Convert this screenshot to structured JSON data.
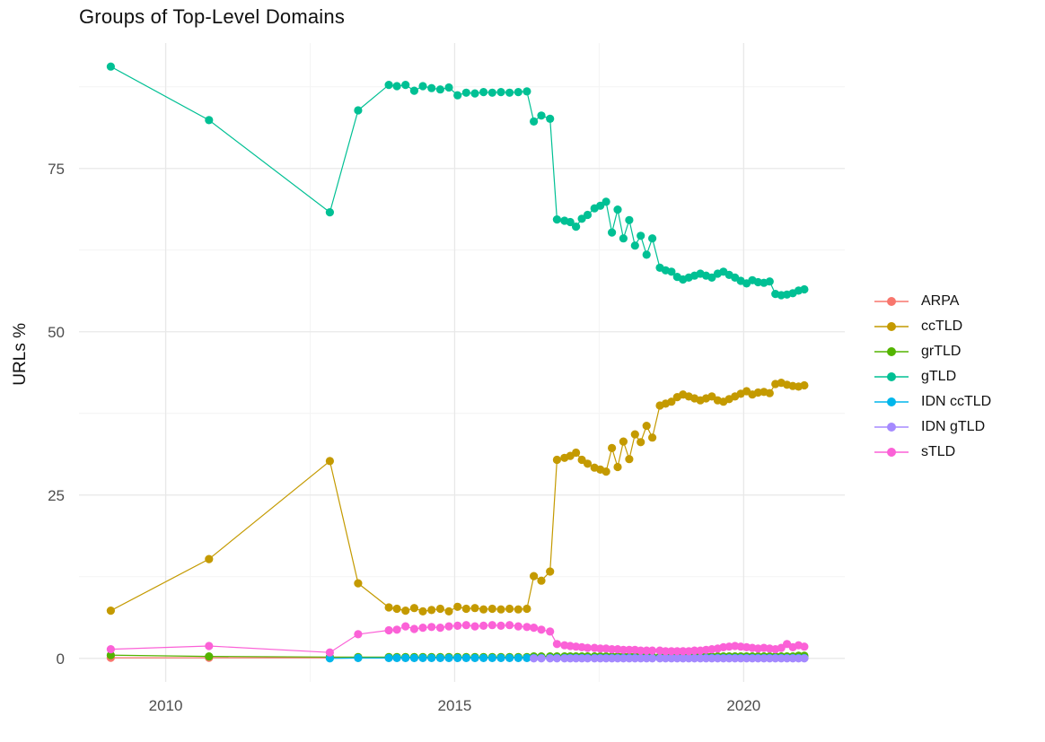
{
  "page": {
    "background": "#ffffff"
  },
  "styles": {
    "grid_major": "#e8e8e8",
    "grid_minor": "#f4f4f4",
    "tick_text": "#4d4d4d",
    "title_color": "#111111"
  },
  "chart_data": {
    "type": "line",
    "title": "Groups of Top-Level Domains",
    "xlabel": "",
    "ylabel": "URLs %",
    "xlim": [
      2008.5,
      2021.75
    ],
    "ylim": [
      -3.6,
      94.2
    ],
    "grid": true,
    "legend_position": "right",
    "x_ticks": [
      {
        "v": 2010,
        "label": "2010"
      },
      {
        "v": 2015,
        "label": "2015"
      },
      {
        "v": 2020,
        "label": "2020"
      }
    ],
    "x_minor": [
      2012.5,
      2017.5
    ],
    "y_ticks": [
      {
        "v": 0,
        "label": "0"
      },
      {
        "v": 25,
        "label": "25"
      },
      {
        "v": 50,
        "label": "50"
      },
      {
        "v": 75,
        "label": "75"
      }
    ],
    "y_minor": [
      12.5,
      37.5,
      62.5,
      87.5
    ],
    "series": [
      {
        "name": "ARPA",
        "color": "#F8766D",
        "x": [
          2009.05,
          2010.75,
          2012.84,
          2013.33,
          2013.86,
          2014.0,
          2014.15,
          2014.3,
          2014.45,
          2014.6,
          2014.75,
          2014.9,
          2015.05,
          2015.2,
          2015.35,
          2015.5,
          2015.65,
          2015.8,
          2015.95,
          2016.1,
          2016.25,
          2016.37,
          2016.5,
          2016.65,
          2016.77,
          2016.9,
          2017.0,
          2017.1,
          2017.2,
          2017.3,
          2017.42,
          2017.52,
          2017.62,
          2017.72,
          2017.82,
          2017.92,
          2018.02,
          2018.12,
          2018.22,
          2018.32,
          2018.42,
          2018.55,
          2018.65,
          2018.75,
          2018.85,
          2018.95,
          2019.05,
          2019.15,
          2019.25,
          2019.35,
          2019.45,
          2019.55,
          2019.65,
          2019.75,
          2019.85,
          2019.95,
          2020.05,
          2020.15,
          2020.25,
          2020.35,
          2020.45,
          2020.55,
          2020.65,
          2020.75,
          2020.85,
          2020.95,
          2021.05
        ],
        "y": [
          0.1,
          0.1,
          0.1,
          0.1,
          0.1,
          0.1,
          0.1,
          0.1,
          0.1,
          0.1,
          0.1,
          0.1,
          0.1,
          0.1,
          0.1,
          0.1,
          0.1,
          0.1,
          0.1,
          0.1,
          0.1,
          0.1,
          0.1,
          0.1,
          0.1,
          0.1,
          0.1,
          0.1,
          0.1,
          0.1,
          0.1,
          0.1,
          0.1,
          0.1,
          0.1,
          0.1,
          0.1,
          0.1,
          0.1,
          0.1,
          0.1,
          0.1,
          0.1,
          0.1,
          0.1,
          0.1,
          0.1,
          0.1,
          0.1,
          0.1,
          0.1,
          0.1,
          0.1,
          0.1,
          0.1,
          0.1,
          0.1,
          0.1,
          0.1,
          0.1,
          0.1,
          0.1,
          0.1,
          0.1,
          0.1,
          0.1,
          0.1
        ]
      },
      {
        "name": "ccTLD",
        "color": "#C49A00",
        "x": [
          2009.05,
          2010.75,
          2012.84,
          2013.33,
          2013.86,
          2014.0,
          2014.15,
          2014.3,
          2014.45,
          2014.6,
          2014.75,
          2014.9,
          2015.05,
          2015.2,
          2015.35,
          2015.5,
          2015.65,
          2015.8,
          2015.95,
          2016.1,
          2016.25,
          2016.37,
          2016.5,
          2016.65,
          2016.77,
          2016.9,
          2017.0,
          2017.1,
          2017.2,
          2017.3,
          2017.42,
          2017.52,
          2017.62,
          2017.72,
          2017.82,
          2017.92,
          2018.02,
          2018.12,
          2018.22,
          2018.32,
          2018.42,
          2018.55,
          2018.65,
          2018.75,
          2018.85,
          2018.95,
          2019.05,
          2019.15,
          2019.25,
          2019.35,
          2019.45,
          2019.55,
          2019.65,
          2019.75,
          2019.85,
          2019.95,
          2020.05,
          2020.15,
          2020.25,
          2020.35,
          2020.45,
          2020.55,
          2020.65,
          2020.75,
          2020.85,
          2020.95,
          2021.05
        ],
        "y": [
          7.3,
          15.2,
          30.2,
          11.5,
          7.8,
          7.6,
          7.3,
          7.7,
          7.2,
          7.4,
          7.6,
          7.2,
          7.9,
          7.6,
          7.7,
          7.5,
          7.6,
          7.5,
          7.6,
          7.5,
          7.6,
          12.6,
          11.9,
          13.3,
          30.4,
          30.7,
          31.0,
          31.5,
          30.4,
          29.8,
          29.2,
          28.9,
          28.6,
          32.2,
          29.3,
          33.2,
          30.5,
          34.3,
          33.1,
          35.6,
          33.8,
          38.7,
          39.0,
          39.3,
          40.0,
          40.4,
          40.1,
          39.8,
          39.5,
          39.8,
          40.1,
          39.5,
          39.3,
          39.7,
          40.1,
          40.5,
          40.9,
          40.4,
          40.7,
          40.8,
          40.6,
          42.0,
          42.2,
          41.9,
          41.7,
          41.6,
          41.8
        ]
      },
      {
        "name": "grTLD",
        "color": "#53B400",
        "x": [
          2009.05,
          2010.75,
          2012.84,
          2013.33,
          2013.86,
          2014.0,
          2014.15,
          2014.3,
          2014.45,
          2014.6,
          2014.75,
          2014.9,
          2015.05,
          2015.2,
          2015.35,
          2015.5,
          2015.65,
          2015.8,
          2015.95,
          2016.1,
          2016.25,
          2016.37,
          2016.5,
          2016.65,
          2016.77,
          2016.9,
          2017.0,
          2017.1,
          2017.2,
          2017.3,
          2017.42,
          2017.52,
          2017.62,
          2017.72,
          2017.82,
          2017.92,
          2018.02,
          2018.12,
          2018.22,
          2018.32,
          2018.42,
          2018.55,
          2018.65,
          2018.75,
          2018.85,
          2018.95,
          2019.05,
          2019.15,
          2019.25,
          2019.35,
          2019.45,
          2019.55,
          2019.65,
          2019.75,
          2019.85,
          2019.95,
          2020.05,
          2020.15,
          2020.25,
          2020.35,
          2020.45,
          2020.55,
          2020.65,
          2020.75,
          2020.85,
          2020.95,
          2021.05
        ],
        "y": [
          0.5,
          0.3,
          0.2,
          0.2,
          0.2,
          0.2,
          0.2,
          0.2,
          0.2,
          0.2,
          0.2,
          0.2,
          0.2,
          0.2,
          0.2,
          0.2,
          0.2,
          0.2,
          0.2,
          0.2,
          0.2,
          0.3,
          0.3,
          0.3,
          0.3,
          0.3,
          0.3,
          0.3,
          0.3,
          0.3,
          0.3,
          0.3,
          0.3,
          0.3,
          0.3,
          0.3,
          0.3,
          0.3,
          0.3,
          0.3,
          0.3,
          0.3,
          0.3,
          0.3,
          0.3,
          0.3,
          0.3,
          0.3,
          0.3,
          0.3,
          0.3,
          0.3,
          0.3,
          0.3,
          0.3,
          0.3,
          0.3,
          0.3,
          0.3,
          0.3,
          0.3,
          0.3,
          0.3,
          0.3,
          0.3,
          0.4,
          0.4
        ]
      },
      {
        "name": "gTLD",
        "color": "#00C094",
        "x": [
          2009.05,
          2010.75,
          2012.84,
          2013.33,
          2013.86,
          2014.0,
          2014.15,
          2014.3,
          2014.45,
          2014.6,
          2014.75,
          2014.9,
          2015.05,
          2015.2,
          2015.35,
          2015.5,
          2015.65,
          2015.8,
          2015.95,
          2016.1,
          2016.25,
          2016.37,
          2016.5,
          2016.65,
          2016.77,
          2016.9,
          2017.0,
          2017.1,
          2017.2,
          2017.3,
          2017.42,
          2017.52,
          2017.62,
          2017.72,
          2017.82,
          2017.92,
          2018.02,
          2018.12,
          2018.22,
          2018.32,
          2018.42,
          2018.55,
          2018.65,
          2018.75,
          2018.85,
          2018.95,
          2019.05,
          2019.15,
          2019.25,
          2019.35,
          2019.45,
          2019.55,
          2019.65,
          2019.75,
          2019.85,
          2019.95,
          2020.05,
          2020.15,
          2020.25,
          2020.35,
          2020.45,
          2020.55,
          2020.65,
          2020.75,
          2020.85,
          2020.95,
          2021.05
        ],
        "y": [
          90.6,
          82.4,
          68.3,
          83.9,
          87.8,
          87.6,
          87.8,
          86.9,
          87.6,
          87.3,
          87.1,
          87.4,
          86.2,
          86.6,
          86.5,
          86.7,
          86.6,
          86.7,
          86.6,
          86.7,
          86.8,
          82.2,
          83.1,
          82.6,
          67.2,
          67.0,
          66.8,
          66.1,
          67.3,
          67.9,
          68.9,
          69.3,
          69.9,
          65.2,
          68.7,
          64.3,
          67.1,
          63.2,
          64.7,
          61.8,
          64.3,
          59.8,
          59.4,
          59.2,
          58.4,
          58.0,
          58.3,
          58.6,
          58.9,
          58.6,
          58.3,
          58.9,
          59.2,
          58.7,
          58.3,
          57.8,
          57.4,
          57.9,
          57.6,
          57.5,
          57.7,
          55.8,
          55.6,
          55.7,
          55.9,
          56.3,
          56.5
        ]
      },
      {
        "name": "IDN ccTLD",
        "color": "#00B6EB",
        "x": [
          2012.84,
          2013.33,
          2013.86,
          2014.0,
          2014.15,
          2014.3,
          2014.45,
          2014.6,
          2014.75,
          2014.9,
          2015.05,
          2015.2,
          2015.35,
          2015.5,
          2015.65,
          2015.8,
          2015.95,
          2016.1,
          2016.25,
          2016.37,
          2016.5,
          2016.65,
          2016.77,
          2016.9,
          2017.0,
          2017.1,
          2017.2,
          2017.3,
          2017.42,
          2017.52,
          2017.62,
          2017.72,
          2017.82,
          2017.92,
          2018.02,
          2018.12,
          2018.22,
          2018.32,
          2018.42,
          2018.55,
          2018.65,
          2018.75,
          2018.85,
          2018.95,
          2019.05,
          2019.15,
          2019.25,
          2019.35,
          2019.45,
          2019.55,
          2019.65,
          2019.75,
          2019.85,
          2019.95,
          2020.05,
          2020.15,
          2020.25,
          2020.35,
          2020.45,
          2020.55,
          2020.65,
          2020.75,
          2020.85,
          2020.95,
          2021.05
        ],
        "y": [
          0.0,
          0.05,
          0.05,
          0.05,
          0.05,
          0.05,
          0.05,
          0.05,
          0.05,
          0.05,
          0.05,
          0.05,
          0.05,
          0.05,
          0.05,
          0.05,
          0.05,
          0.05,
          0.05,
          0.05,
          0.05,
          0.05,
          0.05,
          0.05,
          0.05,
          0.05,
          0.05,
          0.05,
          0.05,
          0.05,
          0.05,
          0.05,
          0.05,
          0.05,
          0.05,
          0.05,
          0.05,
          0.05,
          0.05,
          0.05,
          0.05,
          0.05,
          0.05,
          0.05,
          0.05,
          0.05,
          0.05,
          0.05,
          0.05,
          0.05,
          0.05,
          0.05,
          0.05,
          0.05,
          0.05,
          0.05,
          0.05,
          0.05,
          0.05,
          0.05,
          0.05,
          0.05,
          0.05,
          0.05,
          0.05
        ]
      },
      {
        "name": "IDN gTLD",
        "color": "#A58AFF",
        "x": [
          2016.37,
          2016.5,
          2016.65,
          2016.77,
          2016.9,
          2017.0,
          2017.1,
          2017.2,
          2017.3,
          2017.42,
          2017.52,
          2017.62,
          2017.72,
          2017.82,
          2017.92,
          2018.02,
          2018.12,
          2018.22,
          2018.32,
          2018.42,
          2018.55,
          2018.65,
          2018.75,
          2018.85,
          2018.95,
          2019.05,
          2019.15,
          2019.25,
          2019.35,
          2019.45,
          2019.55,
          2019.65,
          2019.75,
          2019.85,
          2019.95,
          2020.05,
          2020.15,
          2020.25,
          2020.35,
          2020.45,
          2020.55,
          2020.65,
          2020.75,
          2020.85,
          2020.95,
          2021.05
        ],
        "y": [
          0.0,
          0.0,
          0.0,
          0.0,
          0.0,
          0.0,
          0.0,
          0.0,
          0.0,
          0.0,
          0.0,
          0.0,
          0.0,
          0.0,
          0.0,
          0.0,
          0.0,
          0.0,
          0.0,
          0.0,
          0.0,
          0.0,
          0.0,
          0.0,
          0.0,
          0.0,
          0.0,
          0.0,
          0.0,
          0.0,
          0.0,
          0.0,
          0.0,
          0.0,
          0.0,
          0.0,
          0.0,
          0.0,
          0.0,
          0.0,
          0.0,
          0.0,
          0.0,
          0.0,
          0.0,
          0.0
        ]
      },
      {
        "name": "sTLD",
        "color": "#FB61D7",
        "x": [
          2009.05,
          2010.75,
          2012.84,
          2013.33,
          2013.86,
          2014.0,
          2014.15,
          2014.3,
          2014.45,
          2014.6,
          2014.75,
          2014.9,
          2015.05,
          2015.2,
          2015.35,
          2015.5,
          2015.65,
          2015.8,
          2015.95,
          2016.1,
          2016.25,
          2016.37,
          2016.5,
          2016.65,
          2016.77,
          2016.9,
          2017.0,
          2017.1,
          2017.2,
          2017.3,
          2017.42,
          2017.52,
          2017.62,
          2017.72,
          2017.82,
          2017.92,
          2018.02,
          2018.12,
          2018.22,
          2018.32,
          2018.42,
          2018.55,
          2018.65,
          2018.75,
          2018.85,
          2018.95,
          2019.05,
          2019.15,
          2019.25,
          2019.35,
          2019.45,
          2019.55,
          2019.65,
          2019.75,
          2019.85,
          2019.95,
          2020.05,
          2020.15,
          2020.25,
          2020.35,
          2020.45,
          2020.55,
          2020.65,
          2020.75,
          2020.85,
          2020.95,
          2021.05
        ],
        "y": [
          1.4,
          1.9,
          0.9,
          3.7,
          4.3,
          4.4,
          4.9,
          4.5,
          4.7,
          4.8,
          4.7,
          4.9,
          5.0,
          5.1,
          4.9,
          5.0,
          5.1,
          5.0,
          5.1,
          4.9,
          4.8,
          4.7,
          4.4,
          4.1,
          2.2,
          2.0,
          1.9,
          1.8,
          1.7,
          1.6,
          1.6,
          1.5,
          1.5,
          1.4,
          1.4,
          1.3,
          1.3,
          1.3,
          1.2,
          1.2,
          1.2,
          1.2,
          1.1,
          1.1,
          1.1,
          1.1,
          1.1,
          1.2,
          1.2,
          1.3,
          1.4,
          1.5,
          1.7,
          1.8,
          1.9,
          1.8,
          1.7,
          1.6,
          1.5,
          1.6,
          1.5,
          1.4,
          1.6,
          2.2,
          1.7,
          2.0,
          1.8
        ]
      }
    ]
  }
}
